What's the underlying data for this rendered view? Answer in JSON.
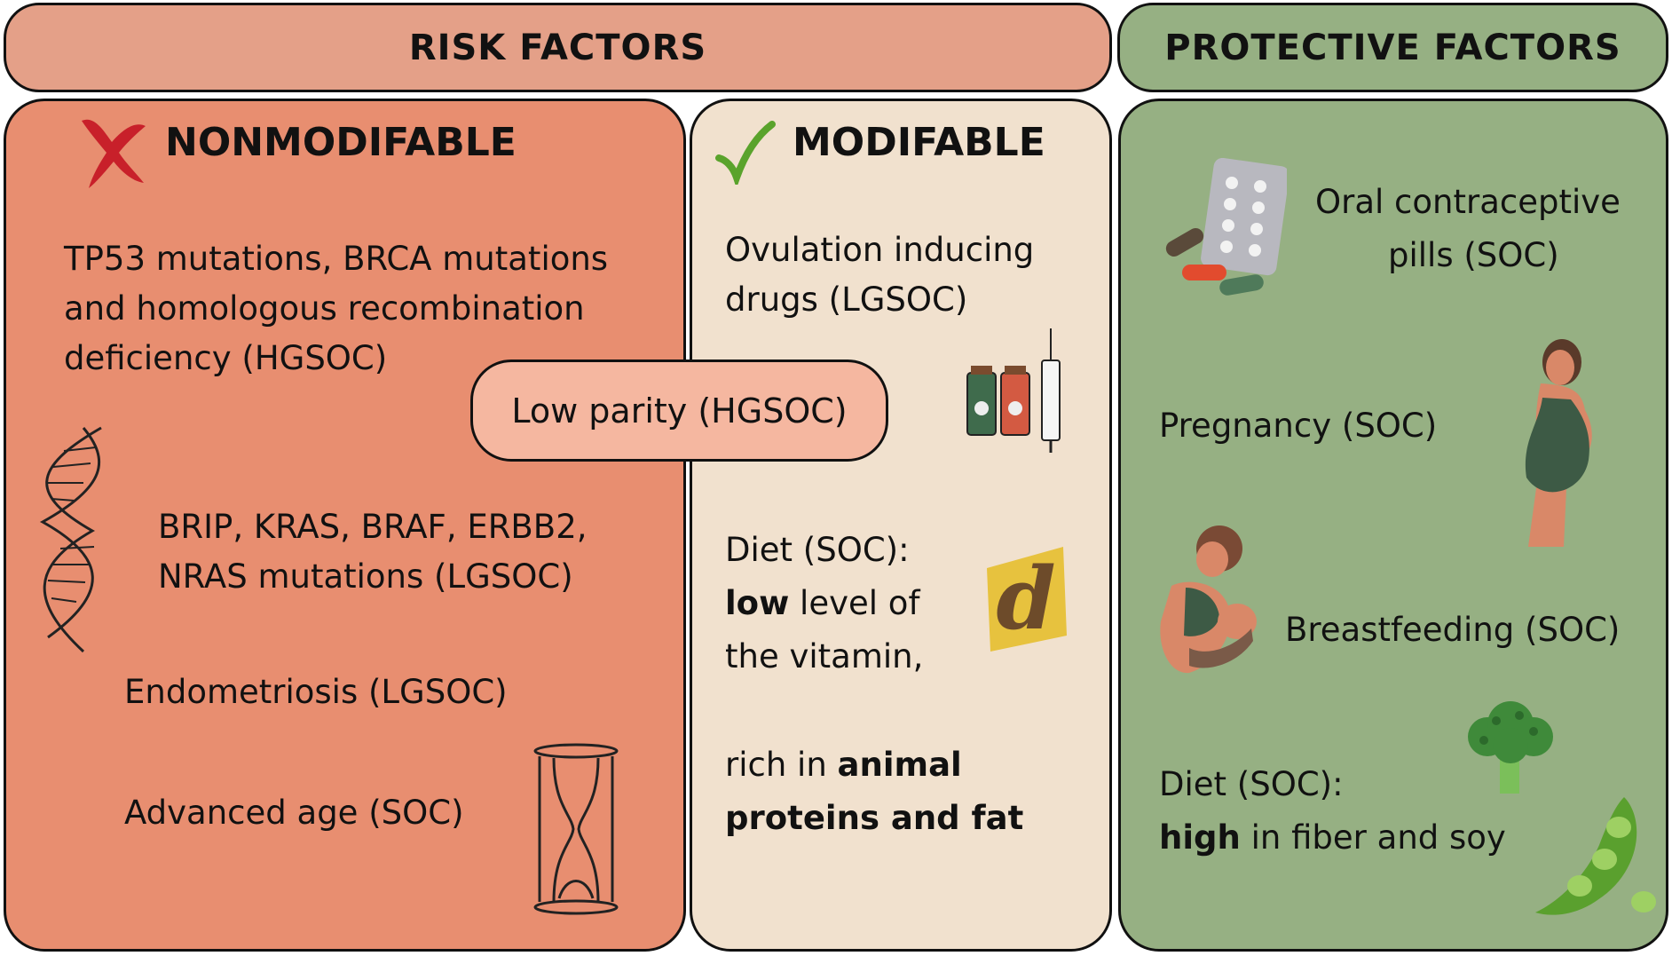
{
  "headers": {
    "risk": "RISK FACTORS",
    "protective": "PROTECTIVE FACTORS"
  },
  "nonmodifiable": {
    "title": "NONMODIFABLE",
    "item1": [
      "TP53 mutations, BRCA mutations",
      "and homologous recombination",
      "deficiency (HGSOC)"
    ],
    "item2": [
      "BRIP, KRAS, BRAF, ERBB2,",
      "NRAS mutations (LGSOC)"
    ],
    "item3": "Endometriosis (LGSOC)",
    "item4": "Advanced age (SOC)"
  },
  "shared": {
    "label": "Low parity (HGSOC)"
  },
  "modifiable": {
    "title": "MODIFABLE",
    "item1": [
      "Ovulation inducing",
      "drugs (LGSOC)"
    ],
    "diet_line1": "Diet (SOC):",
    "diet_line2_bold": "low",
    "diet_line2_rest": " level of",
    "diet_line3": "the vitamin,",
    "diet_line4_pre": "rich in ",
    "diet_line4_bold": "animal",
    "diet_line5_bold": "proteins and fat"
  },
  "protective": {
    "item1": [
      "Oral contraceptive",
      "pills (SOC)"
    ],
    "item2": "Pregnancy (SOC)",
    "item3": "Breastfeeding (SOC)",
    "diet_line1": "Diet (SOC):",
    "diet_line2_bold": "high",
    "diet_line2_rest": " in fiber and soy"
  },
  "icons": [
    "red-cross-icon",
    "green-check-icon",
    "dna-icon",
    "hourglass-icon",
    "medicine-vials-syringe-icon",
    "vitamin-d-icon",
    "pills-blister-icon",
    "pregnant-woman-icon",
    "breastfeeding-icon",
    "broccoli-icon",
    "soybean-pod-icon"
  ],
  "colors": {
    "risk_header": "#e4a088",
    "protective_header": "#96b083",
    "nonmodifiable_bg": "#e88e70",
    "modifiable_bg": "#f1e1ce",
    "protective_bg": "#96b083",
    "shared_pill": "#f5b7a0"
  }
}
